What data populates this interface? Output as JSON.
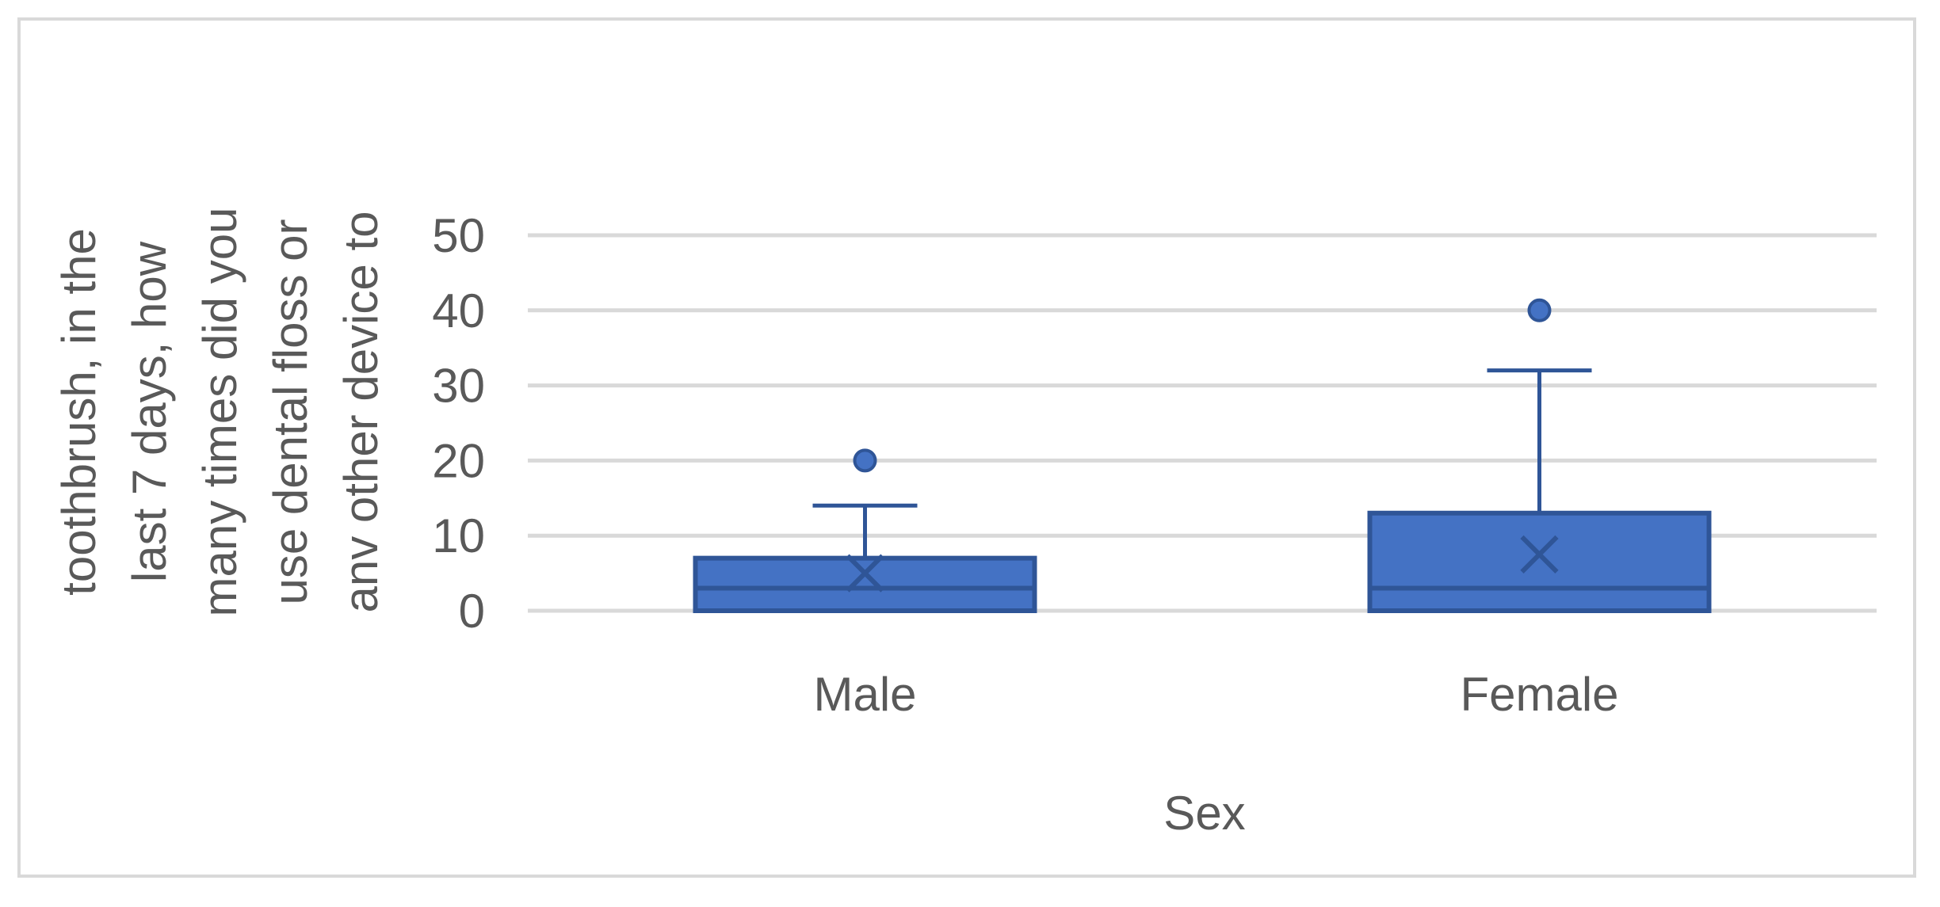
{
  "chart_data": {
    "type": "box",
    "title": "",
    "xlabel": "Sex",
    "ylabel_lines": [
      "toothbrush, in the",
      "last 7 days, how",
      "many times did you",
      "use dental floss or",
      "anv other device to"
    ],
    "ylim": [
      0,
      50
    ],
    "yticks": [
      0,
      10,
      20,
      30,
      40,
      50
    ],
    "grid": true,
    "categories": [
      "Male",
      "Female"
    ],
    "boxes": [
      {
        "category": "Male",
        "whisker_low": 0,
        "q1": 0,
        "median": 3,
        "q3": 7,
        "whisker_high": 14,
        "mean": 5,
        "outliers": [
          20
        ]
      },
      {
        "category": "Female",
        "whisker_low": 0,
        "q1": 0,
        "median": 3,
        "q3": 13,
        "whisker_high": 32,
        "mean": 7.5,
        "outliers": [
          40
        ]
      }
    ],
    "colors": {
      "fill": "#4472c4",
      "stroke": "#2f5597",
      "grid": "#d9d9d9",
      "text": "#595959"
    }
  }
}
